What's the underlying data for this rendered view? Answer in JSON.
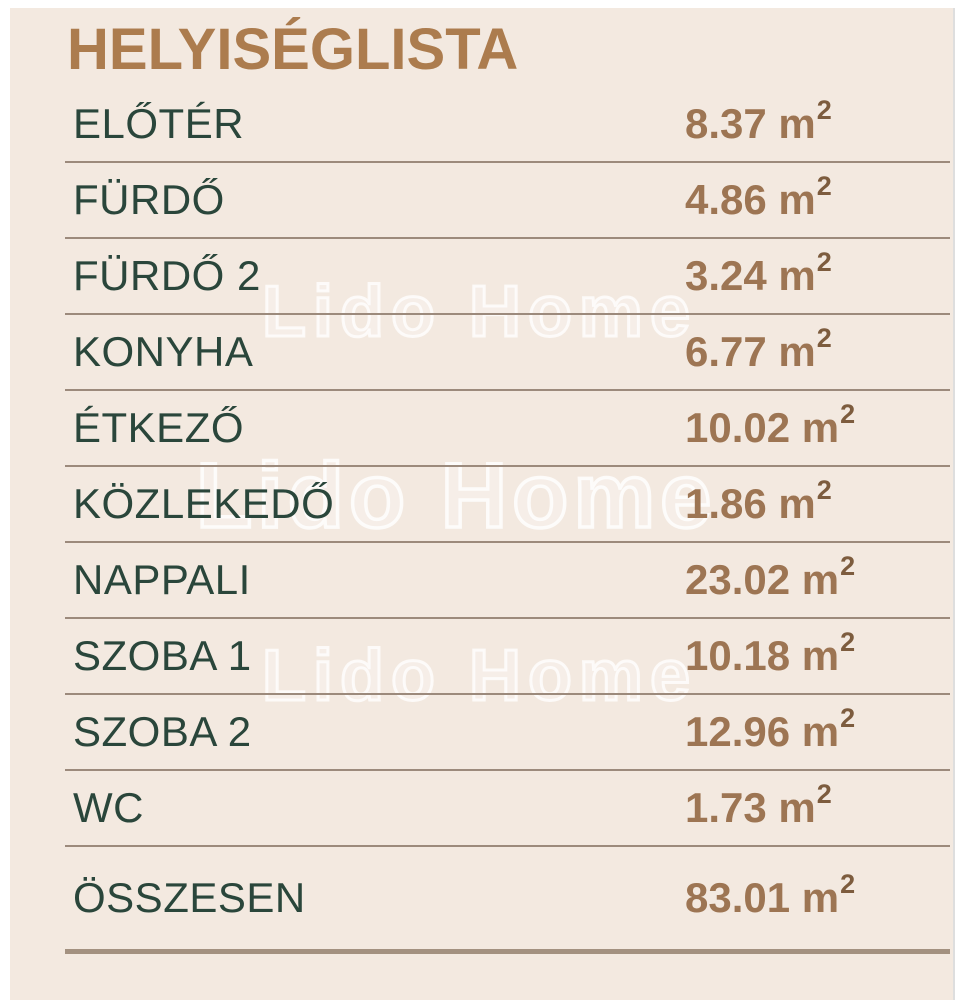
{
  "page": {
    "title": "HELYISÉGLISTA"
  },
  "watermark": {
    "text": "Lido Home"
  },
  "table": {
    "unit": "m",
    "unit_sup": "2",
    "rows": [
      {
        "name": "ELŐTÉR",
        "area": "8.37"
      },
      {
        "name": "FÜRDŐ",
        "area": "4.86"
      },
      {
        "name": "FÜRDŐ 2",
        "area": "3.24"
      },
      {
        "name": "KONYHA",
        "area": "6.77"
      },
      {
        "name": "ÉTKEZŐ",
        "area": "10.02"
      },
      {
        "name": "KÖZLEKEDŐ",
        "area": "1.86"
      },
      {
        "name": "NAPPALI",
        "area": "23.02"
      },
      {
        "name": "SZOBA 1",
        "area": "10.18"
      },
      {
        "name": "SZOBA 2",
        "area": "12.96"
      },
      {
        "name": "WC",
        "area": "1.73"
      }
    ],
    "total": {
      "name": "ÖSSZESEN",
      "area": "83.01"
    }
  },
  "colors": {
    "background": "#f3e9e0",
    "title": "#ac7c4e",
    "room_name": "#2a463b",
    "area_value": "#9d7553",
    "divider": "#9c8a7c",
    "total_divider": "#a39180"
  }
}
